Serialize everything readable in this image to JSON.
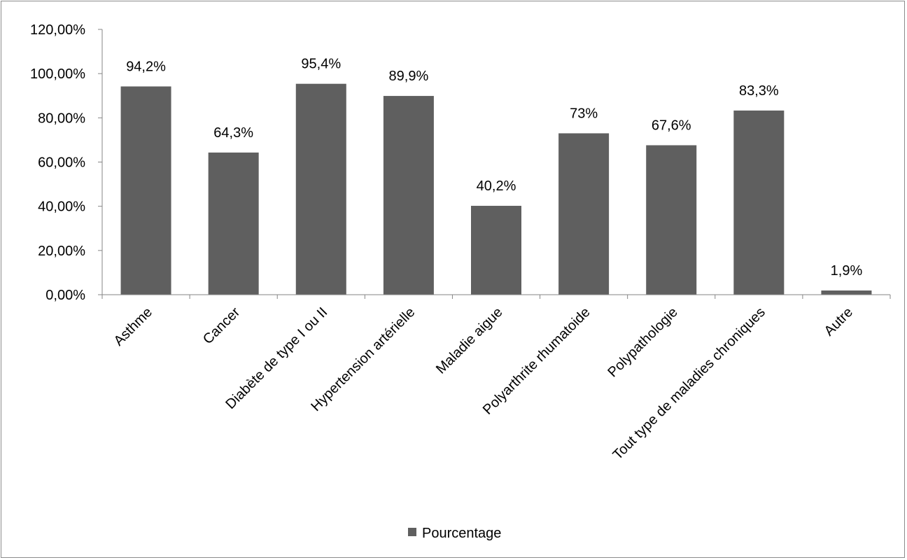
{
  "chart_data": {
    "type": "bar",
    "title": "",
    "xlabel": "",
    "ylabel": "",
    "ylim": [
      0,
      120
    ],
    "grid": false,
    "legend_position": "bottom",
    "y_ticks": [
      "0,00%",
      "20,00%",
      "40,00%",
      "60,00%",
      "80,00%",
      "100,00%",
      "120,00%"
    ],
    "categories": [
      "Asthme",
      "Cancer",
      "Diabète de type I ou II",
      "Hypertension artérielle",
      "Maladie aigue",
      "Polyarthrite rhumatoide",
      "Polypathologie",
      "Tout type de maladies chroniques",
      "Autre"
    ],
    "series": [
      {
        "name": "Pourcentage",
        "color": "#5f5f5f",
        "values": [
          94.2,
          64.3,
          95.4,
          89.9,
          40.2,
          73,
          67.6,
          83.3,
          1.9
        ],
        "labels": [
          "94,2%",
          "64,3%",
          "95,4%",
          "89,9%",
          "40,2%",
          "73%",
          "67,6%",
          "83,3%",
          "1,9%"
        ]
      }
    ]
  }
}
